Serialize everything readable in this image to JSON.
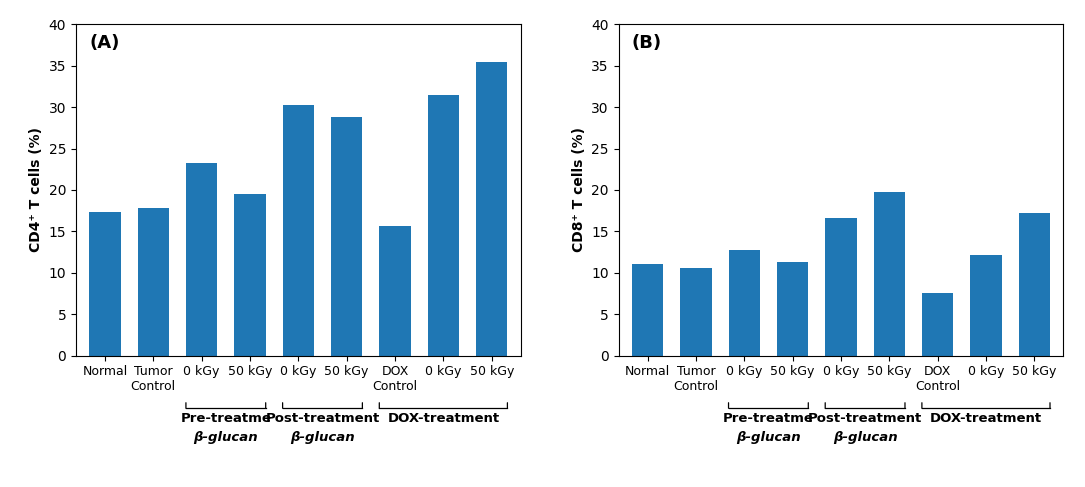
{
  "chart_data": [
    {
      "type": "bar",
      "annotation": "(A)",
      "y_label": "CD4⁺ T cells (%)",
      "categories": [
        "Normal",
        "Tumor\nControl",
        "0 kGy",
        "50 kGy",
        "0 kGy",
        "50 kGy",
        "DOX\nControl",
        "0 kGy",
        "50 kGy"
      ],
      "values": [
        17.3,
        17.8,
        23.3,
        19.5,
        30.3,
        28.8,
        15.6,
        31.5,
        35.5
      ],
      "ylim": [
        0,
        40
      ],
      "yticks": [
        0,
        5,
        10,
        15,
        20,
        25,
        30,
        35,
        40
      ],
      "grid": false,
      "groups": [
        {
          "from": 2,
          "to": 3,
          "label": [
            "Pre-treatme",
            "β-glucan"
          ]
        },
        {
          "from": 4,
          "to": 5,
          "label": [
            "Post-treatment",
            "β-glucan"
          ]
        },
        {
          "from": 6,
          "to": 8,
          "label": [
            "DOX-treatment"
          ]
        }
      ]
    },
    {
      "type": "bar",
      "annotation": "(B)",
      "y_label": "CD8⁺ T cells (%)",
      "categories": [
        "Normal",
        "Tumor\nControl",
        "0 kGy",
        "50 kGy",
        "0 kGy",
        "50 kGy",
        "DOX\nControl",
        "0 kGy",
        "50 kGy"
      ],
      "values": [
        11.1,
        10.6,
        12.8,
        11.3,
        16.6,
        19.8,
        7.5,
        12.2,
        17.2
      ],
      "ylim": [
        0,
        40
      ],
      "yticks": [
        0,
        5,
        10,
        15,
        20,
        25,
        30,
        35,
        40
      ],
      "grid": false,
      "groups": [
        {
          "from": 2,
          "to": 3,
          "label": [
            "Pre-treatme",
            "β-glucan"
          ]
        },
        {
          "from": 4,
          "to": 5,
          "label": [
            "Post-treatment",
            "β-glucan"
          ]
        },
        {
          "from": 6,
          "to": 8,
          "label": [
            "DOX-treatment"
          ]
        }
      ]
    }
  ]
}
